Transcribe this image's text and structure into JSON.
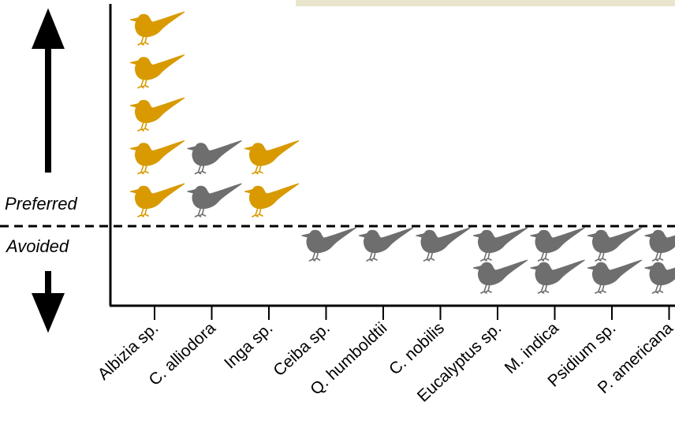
{
  "chart_data": {
    "type": "pictograph",
    "title": "",
    "xlabel": "",
    "ylabel": "",
    "upper_label": "Preferred",
    "lower_label": "Avoided",
    "categories": [
      "Albizia sp.",
      "C. alliodora",
      "Inga sp.",
      "Ceiba sp.",
      "Q. humboldtii",
      "C. nobilis",
      "Eucalyptus sp.",
      "M. indica",
      "Psidium sp.",
      "P. americana"
    ],
    "values": [
      5,
      2,
      2,
      -1,
      -1,
      -1,
      -2,
      -2,
      -2,
      -2
    ],
    "point_colors": [
      "#d89a00",
      "#6e6e6e",
      "#d89a00",
      "#6e6e6e",
      "#6e6e6e",
      "#6e6e6e",
      "#6e6e6e",
      "#6e6e6e",
      "#6e6e6e",
      "#6e6e6e"
    ],
    "unit_icon": "bird-icon",
    "arrow_up_icon": "arrow-up-icon",
    "arrow_down_icon": "arrow-down-icon"
  }
}
